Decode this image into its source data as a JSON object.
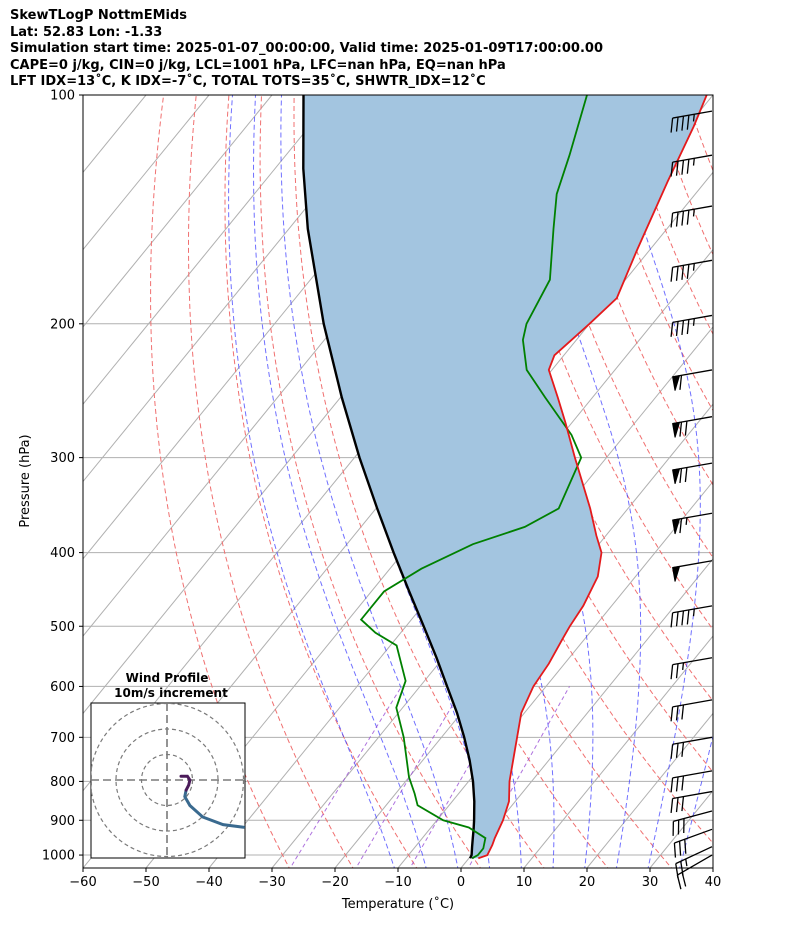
{
  "header": {
    "line1": "SkewTLogP NottmEMids",
    "line2": "Lat: 52.83   Lon: -1.33",
    "line3": "Simulation start time: 2025-01-07_00:00:00, Valid time: 2025-01-09T17:00:00.00",
    "line4": "CAPE=0 j/kg, CIN=0 j/kg, LCL=1001 hPa, LFC=nan hPa, EQ=nan hPa",
    "line5": "LFT IDX=13$^\\circ$C, K IDX=-7$^\\circ$C, TOTAL TOTS=35$^\\circ$C, SHWTR_IDX=12$^\\circ$C"
  },
  "header_display": {
    "line5": "LFT IDX=13˚C, K IDX=-7˚C, TOTAL TOTS=35˚C, SHWTR_IDX=12˚C"
  },
  "colors": {
    "temperature": "#e41a1c",
    "dewpoint": "#008000",
    "parcel": "#000000",
    "cape_fill": "#a3c5e0",
    "dry_adiabat": "#f07070",
    "moist_adiabat": "#4040ff",
    "mixing_ratio": "#9a4fd6",
    "isotherm": "#b0b0b0",
    "hodograph": "#3a6a8f",
    "hodograph_top": "#4b1b5a"
  },
  "chart_data": {
    "type": "skewt",
    "xlabel": "Temperature ($^\\circ$C)",
    "xlabel_display": "Temperature (˚C)",
    "ylabel": "Pressure (hPa)",
    "xlim": [
      -60,
      40
    ],
    "ylim": [
      1040,
      100
    ],
    "x_ticks": [
      -60,
      -50,
      -40,
      -30,
      -20,
      -10,
      0,
      10,
      20,
      30,
      40
    ],
    "y_ticks": [
      1000,
      900,
      800,
      700,
      600,
      500,
      400,
      300,
      200,
      100
    ],
    "temperature": [
      {
        "p": 1010,
        "t": 1.5
      },
      {
        "p": 1000,
        "t": 2.5
      },
      {
        "p": 970,
        "t": 2.0
      },
      {
        "p": 950,
        "t": 1.5
      },
      {
        "p": 900,
        "t": 0.5
      },
      {
        "p": 850,
        "t": -1.0
      },
      {
        "p": 800,
        "t": -3.5
      },
      {
        "p": 700,
        "t": -8.0
      },
      {
        "p": 650,
        "t": -10.5
      },
      {
        "p": 600,
        "t": -12.0
      },
      {
        "p": 560,
        "t": -12.5
      },
      {
        "p": 520,
        "t": -13.5
      },
      {
        "p": 500,
        "t": -14.0
      },
      {
        "p": 470,
        "t": -14.5
      },
      {
        "p": 430,
        "t": -16.0
      },
      {
        "p": 400,
        "t": -18.5
      },
      {
        "p": 380,
        "t": -21.5
      },
      {
        "p": 350,
        "t": -26.0
      },
      {
        "p": 300,
        "t": -35.0
      },
      {
        "p": 270,
        "t": -41.0
      },
      {
        "p": 250,
        "t": -45.5
      },
      {
        "p": 230,
        "t": -50.5
      },
      {
        "p": 220,
        "t": -51.5
      },
      {
        "p": 200,
        "t": -50.0
      },
      {
        "p": 185,
        "t": -49.0
      },
      {
        "p": 160,
        "t": -52.0
      },
      {
        "p": 130,
        "t": -56.0
      },
      {
        "p": 110,
        "t": -59.0
      },
      {
        "p": 100,
        "t": -61.0
      }
    ],
    "dewpoint": [
      {
        "p": 1010,
        "t": 0.5
      },
      {
        "p": 1000,
        "t": 1.0
      },
      {
        "p": 980,
        "t": 1.0
      },
      {
        "p": 950,
        "t": 0.0
      },
      {
        "p": 920,
        "t": -4.0
      },
      {
        "p": 900,
        "t": -9.0
      },
      {
        "p": 860,
        "t": -15.0
      },
      {
        "p": 830,
        "t": -17.0
      },
      {
        "p": 790,
        "t": -20.0
      },
      {
        "p": 700,
        "t": -26.0
      },
      {
        "p": 640,
        "t": -31.0
      },
      {
        "p": 590,
        "t": -33.0
      },
      {
        "p": 530,
        "t": -39.0
      },
      {
        "p": 510,
        "t": -44.0
      },
      {
        "p": 490,
        "t": -48.0
      },
      {
        "p": 450,
        "t": -48.0
      },
      {
        "p": 420,
        "t": -45.0
      },
      {
        "p": 390,
        "t": -40.0
      },
      {
        "p": 370,
        "t": -34.0
      },
      {
        "p": 350,
        "t": -31.0
      },
      {
        "p": 300,
        "t": -34.0
      },
      {
        "p": 280,
        "t": -38.5
      },
      {
        "p": 250,
        "t": -47.5
      },
      {
        "p": 230,
        "t": -54.0
      },
      {
        "p": 210,
        "t": -58.5
      },
      {
        "p": 200,
        "t": -60.0
      },
      {
        "p": 175,
        "t": -62.0
      },
      {
        "p": 150,
        "t": -68.0
      },
      {
        "p": 135,
        "t": -72.0
      },
      {
        "p": 120,
        "t": -75.0
      },
      {
        "p": 100,
        "t": -80.0
      }
    ],
    "parcel": [
      {
        "p": 1010,
        "t": 0.2
      },
      {
        "p": 1000,
        "t": 0.0
      },
      {
        "p": 975,
        "t": -1.0
      },
      {
        "p": 950,
        "t": -2.0
      },
      {
        "p": 925,
        "t": -3.0
      },
      {
        "p": 900,
        "t": -4.1
      },
      {
        "p": 850,
        "t": -6.5
      },
      {
        "p": 800,
        "t": -9.3
      },
      {
        "p": 750,
        "t": -12.6
      },
      {
        "p": 700,
        "t": -16.4
      },
      {
        "p": 650,
        "t": -20.7
      },
      {
        "p": 600,
        "t": -25.7
      },
      {
        "p": 550,
        "t": -31.1
      },
      {
        "p": 500,
        "t": -37.2
      },
      {
        "p": 450,
        "t": -44.0
      },
      {
        "p": 400,
        "t": -51.5
      },
      {
        "p": 350,
        "t": -59.8
      },
      {
        "p": 300,
        "t": -69.2
      },
      {
        "p": 250,
        "t": -79.8
      },
      {
        "p": 200,
        "t": -92.2
      },
      {
        "p": 150,
        "t": -107.0
      },
      {
        "p": 125,
        "t": -115.5
      },
      {
        "p": 100,
        "t": -125.0
      }
    ],
    "wind_barbs": [
      {
        "p": 1000,
        "speed_kt": 20,
        "dir_deg": 240
      },
      {
        "p": 975,
        "speed_kt": 25,
        "dir_deg": 245
      },
      {
        "p": 925,
        "speed_kt": 30,
        "dir_deg": 250
      },
      {
        "p": 875,
        "speed_kt": 30,
        "dir_deg": 255
      },
      {
        "p": 825,
        "speed_kt": 30,
        "dir_deg": 260
      },
      {
        "p": 775,
        "speed_kt": 30,
        "dir_deg": 260
      },
      {
        "p": 700,
        "speed_kt": 30,
        "dir_deg": 260
      },
      {
        "p": 625,
        "speed_kt": 30,
        "dir_deg": 260
      },
      {
        "p": 550,
        "speed_kt": 25,
        "dir_deg": 260
      },
      {
        "p": 470,
        "speed_kt": 45,
        "dir_deg": 260
      },
      {
        "p": 410,
        "speed_kt": 50,
        "dir_deg": 260
      },
      {
        "p": 355,
        "speed_kt": 65,
        "dir_deg": 260
      },
      {
        "p": 305,
        "speed_kt": 70,
        "dir_deg": 260
      },
      {
        "p": 265,
        "speed_kt": 70,
        "dir_deg": 260
      },
      {
        "p": 230,
        "speed_kt": 60,
        "dir_deg": 260
      },
      {
        "p": 195,
        "speed_kt": 45,
        "dir_deg": 260
      },
      {
        "p": 165,
        "speed_kt": 45,
        "dir_deg": 260
      },
      {
        "p": 140,
        "speed_kt": 45,
        "dir_deg": 260
      },
      {
        "p": 120,
        "speed_kt": 45,
        "dir_deg": 260
      },
      {
        "p": 105,
        "speed_kt": 45,
        "dir_deg": 260
      }
    ]
  },
  "hodograph": {
    "title_line1": "Wind Profile",
    "title_line2": "10m/s increment",
    "ring_increment_ms": 10,
    "rings": 3,
    "points": [
      {
        "u": 30.0,
        "v": -18.5
      },
      {
        "u": 22.0,
        "v": -17.5
      },
      {
        "u": 14.0,
        "v": -14.5
      },
      {
        "u": 9.0,
        "v": -10.0
      },
      {
        "u": 7.0,
        "v": -6.5
      },
      {
        "u": 7.5,
        "v": -4.0
      },
      {
        "u": 8.5,
        "v": -2.0
      },
      {
        "u": 9.0,
        "v": 0.0
      },
      {
        "u": 8.0,
        "v": 1.5
      },
      {
        "u": 5.5,
        "v": 1.5
      }
    ]
  }
}
